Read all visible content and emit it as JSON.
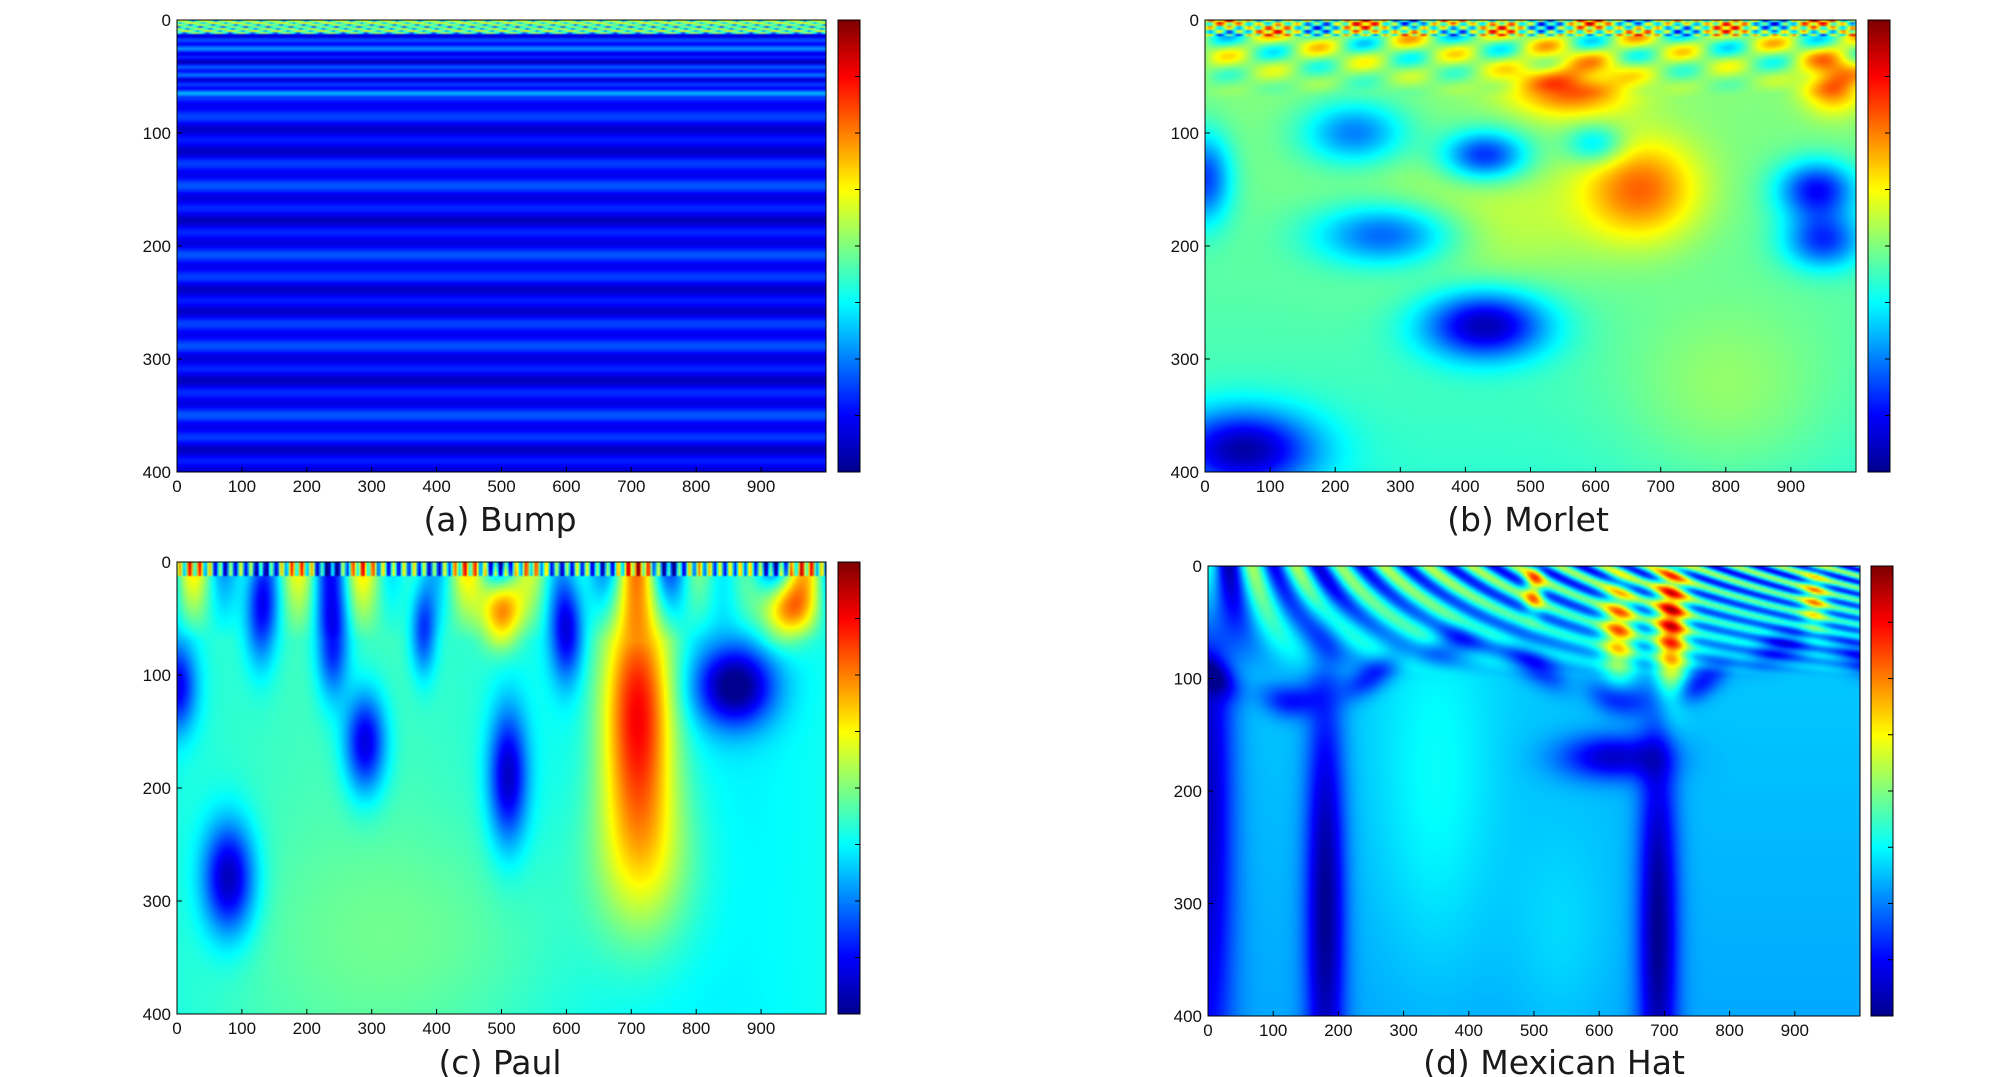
{
  "colors": {
    "jet": [
      "#00008f",
      "#0000ff",
      "#0080ff",
      "#00ffff",
      "#80ff80",
      "#ffff00",
      "#ff8000",
      "#ff0000",
      "#800000"
    ],
    "axis": "#000000",
    "text": "#111111"
  },
  "chart_data": [
    {
      "type": "heatmap",
      "panel": "a",
      "title": "(a) Bump",
      "x_ticks": [
        0,
        100,
        200,
        300,
        400,
        500,
        600,
        700,
        800,
        900
      ],
      "y_ticks": [
        0,
        100,
        200,
        300,
        400
      ],
      "xlim": [
        0,
        1000
      ],
      "ylim": [
        0,
        400
      ],
      "y_inverted": true,
      "colorbar": true,
      "colormap": "jet",
      "pattern": "bump",
      "description_values": {
        "dominant_level": 0.12,
        "top_band_level": 0.35
      }
    },
    {
      "type": "heatmap",
      "panel": "b",
      "title": "(b) Morlet",
      "x_ticks": [
        0,
        100,
        200,
        300,
        400,
        500,
        600,
        700,
        800,
        900
      ],
      "y_ticks": [
        0,
        100,
        200,
        300,
        400
      ],
      "xlim": [
        0,
        1000
      ],
      "ylim": [
        0,
        400
      ],
      "y_inverted": true,
      "colorbar": true,
      "colormap": "jet",
      "pattern": "morlet",
      "peaks": [
        {
          "x": 560,
          "y": 60,
          "value": 0.85
        },
        {
          "x": 680,
          "y": 150,
          "value": 0.78
        },
        {
          "x": 960,
          "y": 55,
          "value": 0.8
        }
      ]
    },
    {
      "type": "heatmap",
      "panel": "c",
      "title": "(c) Paul",
      "x_ticks": [
        0,
        100,
        200,
        300,
        400,
        500,
        600,
        700,
        800,
        900
      ],
      "y_ticks": [
        0,
        100,
        200,
        300,
        400
      ],
      "xlim": [
        0,
        1000
      ],
      "ylim": [
        0,
        400
      ],
      "y_inverted": true,
      "colorbar": true,
      "colormap": "jet",
      "pattern": "paul",
      "peaks": [
        {
          "x": 700,
          "y": 130,
          "value": 0.95
        },
        {
          "x": 500,
          "y": 40,
          "value": 0.85
        },
        {
          "x": 930,
          "y": 40,
          "value": 0.8
        }
      ]
    },
    {
      "type": "heatmap",
      "panel": "d",
      "title": "(d) Mexican Hat",
      "x_ticks": [
        0,
        100,
        200,
        300,
        400,
        500,
        600,
        700,
        800,
        900
      ],
      "y_ticks": [
        0,
        100,
        200,
        300,
        400
      ],
      "xlim": [
        0,
        1000
      ],
      "ylim": [
        0,
        400
      ],
      "y_inverted": true,
      "colorbar": true,
      "colormap": "jet",
      "pattern": "mexican",
      "peaks": [
        {
          "x": 710,
          "y": 50,
          "value": 0.9
        },
        {
          "x": 620,
          "y": 55,
          "value": 0.8
        },
        {
          "x": 500,
          "y": 20,
          "value": 0.75
        }
      ]
    }
  ]
}
